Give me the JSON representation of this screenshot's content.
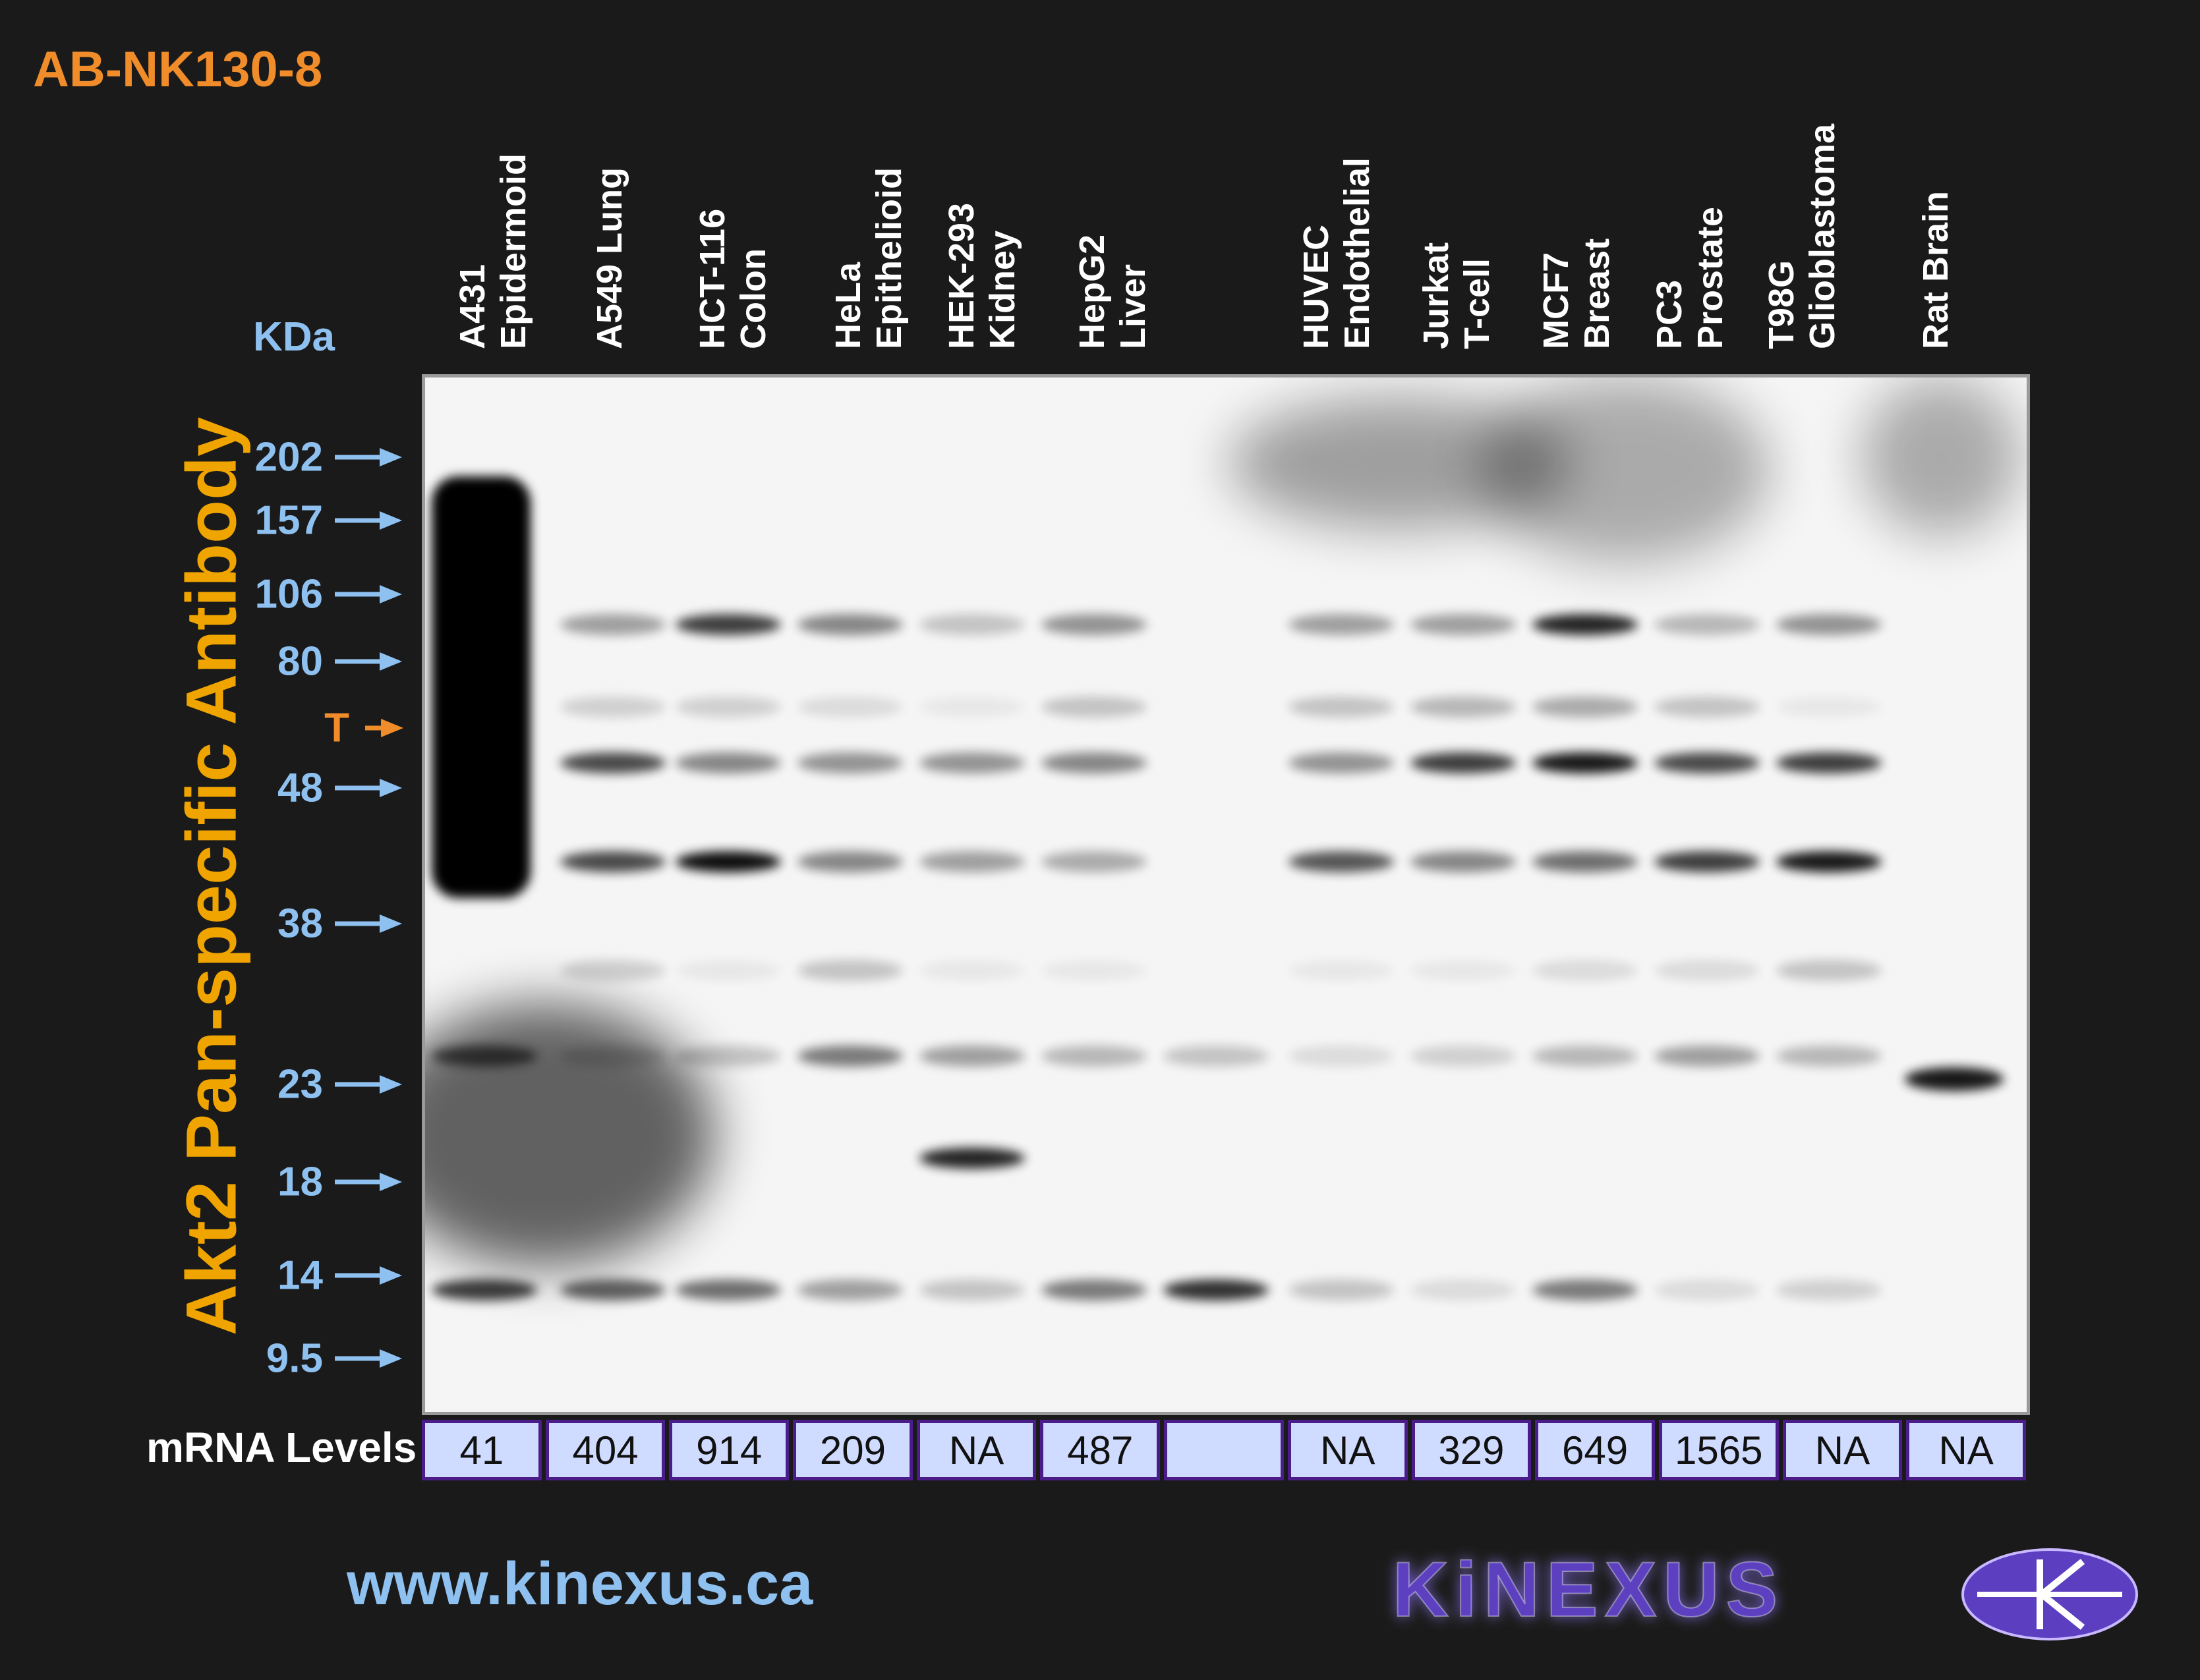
{
  "header": {
    "product_code": "AB-NK130-8"
  },
  "title": "Akt2 Pan-specific Antibody",
  "kda_label": "KDa",
  "markers": [
    {
      "label": "202",
      "kind": "standard"
    },
    {
      "label": "157",
      "kind": "standard"
    },
    {
      "label": "106",
      "kind": "standard"
    },
    {
      "label": "80",
      "kind": "standard"
    },
    {
      "label": "T",
      "kind": "target"
    },
    {
      "label": "48",
      "kind": "standard"
    },
    {
      "label": "38",
      "kind": "standard"
    },
    {
      "label": "23",
      "kind": "standard"
    },
    {
      "label": "18",
      "kind": "standard"
    },
    {
      "label": "14",
      "kind": "standard"
    },
    {
      "label": "9.5",
      "kind": "standard"
    }
  ],
  "lanes": [
    {
      "line1": "A431",
      "line2": "Epidermoid",
      "mrna": "41"
    },
    {
      "line1": "A549 Lung",
      "line2": "",
      "mrna": "404"
    },
    {
      "line1": "HCT-116",
      "line2": "Colon",
      "mrna": "914"
    },
    {
      "line1": "HeLa",
      "line2": "Epithelioid",
      "mrna": "209"
    },
    {
      "line1": "HEK-293",
      "line2": "Kidney",
      "mrna": "NA"
    },
    {
      "line1": "HepG2",
      "line2": "Liver",
      "mrna": "487"
    },
    {
      "line1": "",
      "line2": "",
      "mrna": ""
    },
    {
      "line1": "HUVEC",
      "line2": "Endothelial",
      "mrna": "NA"
    },
    {
      "line1": "Jurkat",
      "line2": "T-cell",
      "mrna": "329"
    },
    {
      "line1": "MCF7",
      "line2": "Breast",
      "mrna": "649"
    },
    {
      "line1": "PC3",
      "line2": "Prostate",
      "mrna": "1565"
    },
    {
      "line1": "T98G",
      "line2": "Glioblastoma",
      "mrna": "NA"
    },
    {
      "line1": "Rat Brain",
      "line2": "",
      "mrna": "NA"
    }
  ],
  "mrna_label": "mRNA Levels",
  "footer": {
    "website": "www.kinexus.ca",
    "brand": "KiNEXUS"
  },
  "colors": {
    "accent_orange": "#f08c2a",
    "title_yellow": "#f0a400",
    "marker_blue": "#8ec0f0",
    "cell_fill": "#cfdcff",
    "cell_border": "#4a1d8a",
    "brand_purple": "#5b3fc0"
  }
}
